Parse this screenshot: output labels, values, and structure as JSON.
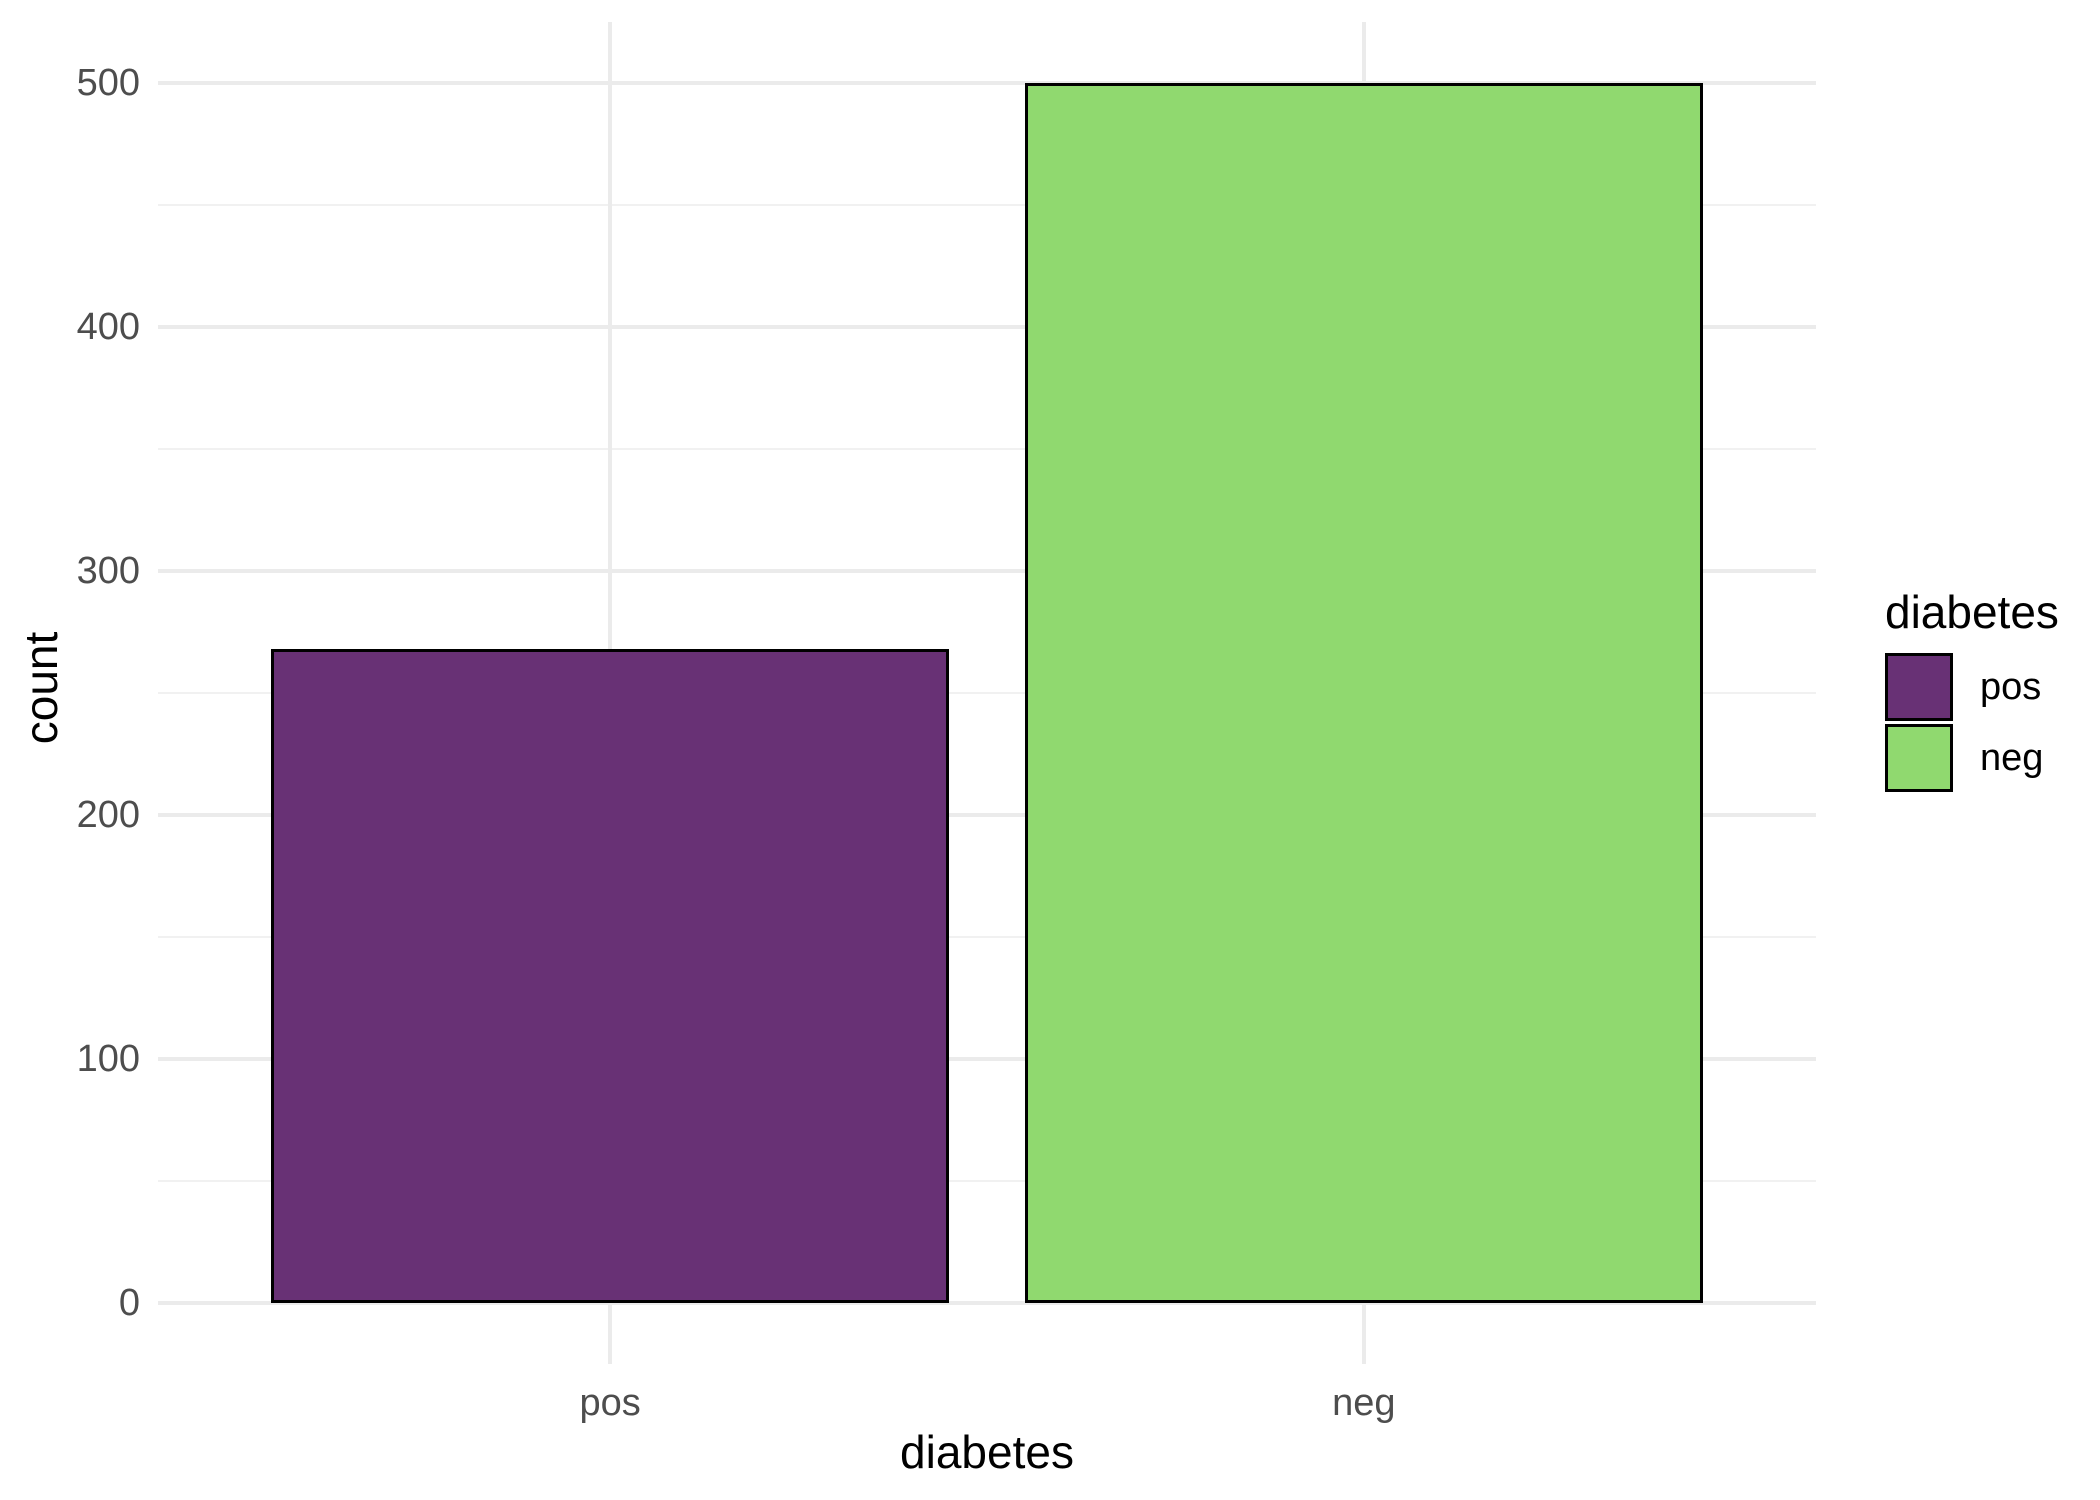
{
  "chart_data": {
    "type": "bar",
    "title": "",
    "categories": [
      "pos",
      "neg"
    ],
    "values": [
      268,
      500
    ],
    "bar_colors": [
      "#683175",
      "#90d96f"
    ],
    "bar_outline_color": "#000000",
    "xlabel": "diabetes",
    "ylabel": "count",
    "ylim": [
      0,
      500
    ],
    "y_expansion": 25,
    "yticks": [
      0,
      100,
      200,
      300,
      400,
      500
    ],
    "ytick_labels": [
      "0",
      "100",
      "200",
      "300",
      "400",
      "500"
    ],
    "yticks_minor": [
      50,
      150,
      250,
      350,
      450
    ],
    "grid": "horizontal major+minor, vertical major at category centers; no axis lines (minimal theme)",
    "gridline_color": "#ebebeb",
    "tick_label_color": "#4d4d4d",
    "legend": {
      "position": "right",
      "title": "diabetes",
      "entries": [
        {
          "label": "pos",
          "color": "#683175"
        },
        {
          "label": "neg",
          "color": "#90d96f"
        }
      ]
    }
  }
}
